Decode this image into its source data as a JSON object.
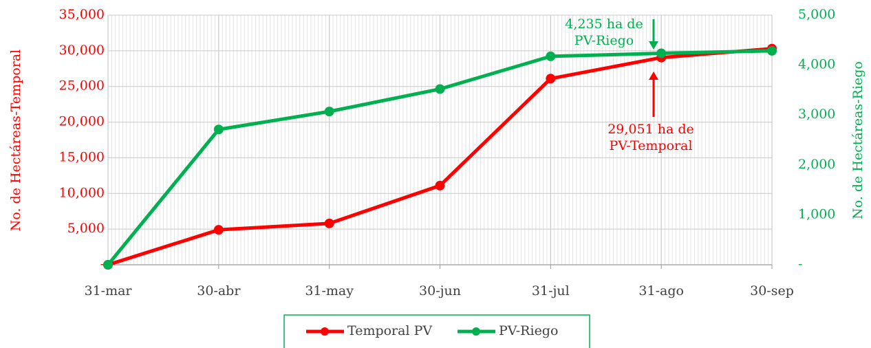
{
  "chart_data": {
    "type": "line",
    "categories": [
      "31-mar",
      "30-abr",
      "31-may",
      "30-jun",
      "31-jul",
      "31-ago",
      "30-sep"
    ],
    "series": [
      {
        "name": "Temporal PV",
        "color": "#ff0000",
        "values": [
          0,
          4900,
          5800,
          11100,
          26100,
          29051,
          30300
        ]
      },
      {
        "name": "PV-Riego",
        "color": "#00b050",
        "axis": "y2",
        "values": [
          0,
          2710,
          3070,
          3520,
          4175,
          4235,
          4285
        ]
      }
    ],
    "ylabel": "No. de Hectáreas-Temporal",
    "y2label": "No. de Hectáreas-Riego",
    "ylim": [
      0,
      35000
    ],
    "yticks": [
      {
        "value": 0,
        "label": "-"
      },
      {
        "value": 5000,
        "label": "5,000"
      },
      {
        "value": 10000,
        "label": "10,000"
      },
      {
        "value": 15000,
        "label": "15,000"
      },
      {
        "value": 20000,
        "label": "20,000"
      },
      {
        "value": 25000,
        "label": "25,000"
      },
      {
        "value": 30000,
        "label": "30,000"
      },
      {
        "value": 35000,
        "label": "35,000"
      }
    ],
    "y2lim": [
      0,
      5000
    ],
    "y2ticks": [
      {
        "value": 0,
        "label": "-"
      },
      {
        "value": 1000,
        "label": "1,000"
      },
      {
        "value": 2000,
        "label": "2,000"
      },
      {
        "value": 3000,
        "label": "3,000"
      },
      {
        "value": 4000,
        "label": "4,000"
      },
      {
        "value": 5000,
        "label": "5,000"
      }
    ],
    "annotations": [
      {
        "lines": [
          "4,235 ha de",
          "PV-Riego"
        ],
        "color": "#00b050"
      },
      {
        "lines": [
          "29,051 ha de",
          "PV-Temporal"
        ],
        "color": "#ff0000"
      }
    ],
    "grid": true,
    "legend": "bottom"
  }
}
